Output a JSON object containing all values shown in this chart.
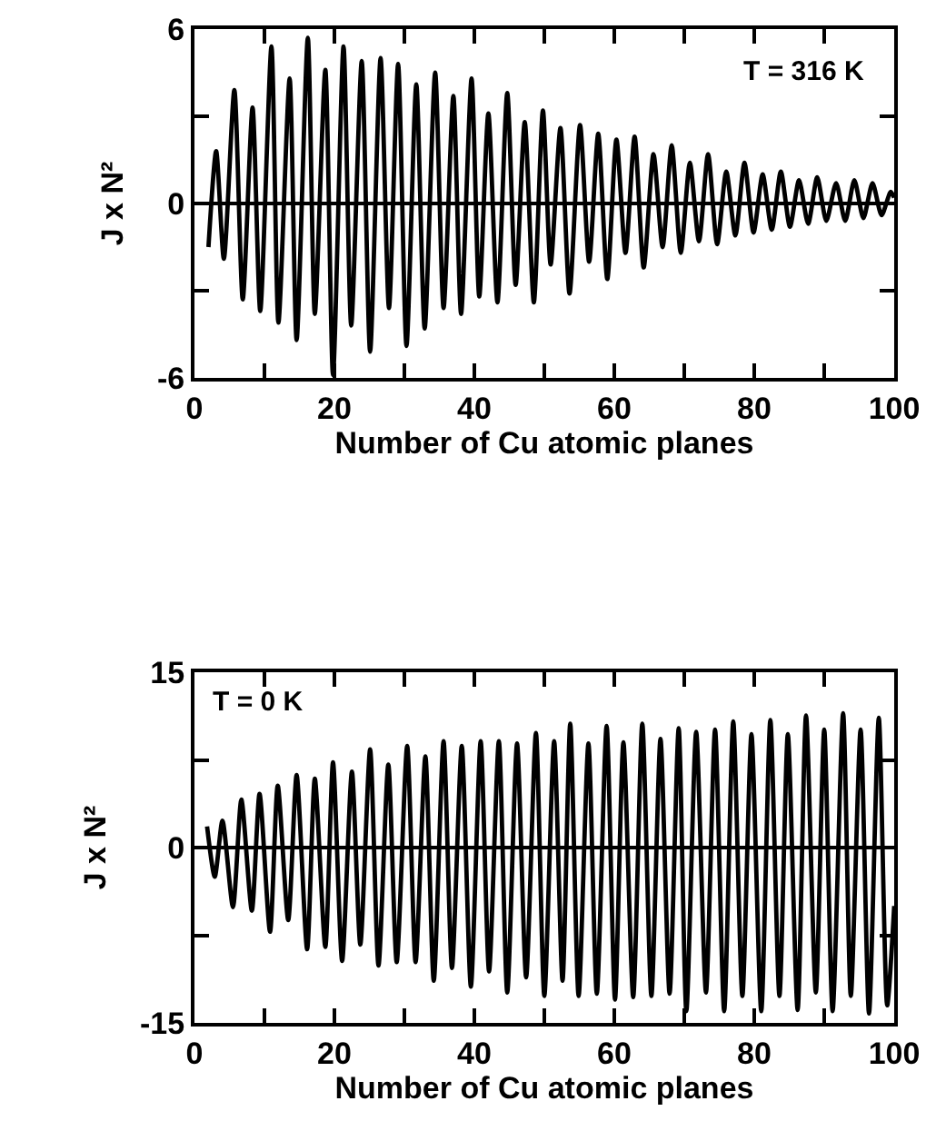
{
  "chart_data": [
    {
      "type": "line",
      "xlabel": "Number of Cu atomic planes",
      "ylabel": "J x N²",
      "annotations": [
        "T = 316 K"
      ],
      "xlim": [
        0,
        100
      ],
      "xticks": [
        0,
        {
          "value": 10,
          "label": null
        },
        20,
        {
          "value": 30,
          "label": null
        },
        40,
        {
          "value": 50,
          "label": null
        },
        60,
        {
          "value": 70,
          "label": null
        },
        80,
        {
          "value": 90,
          "label": null
        },
        100
      ],
      "ylim": [
        -6,
        6
      ],
      "yticks": [
        -6,
        {
          "value": -3,
          "label": null
        },
        0,
        {
          "value": 3,
          "label": null
        },
        6
      ],
      "grid": false,
      "marker": "none",
      "line_style": "solid",
      "ref_lines": [
        {
          "axis": "y",
          "value": 0,
          "color": "#000000"
        }
      ],
      "series": [
        {
          "color": "#000000",
          "x": [
            2,
            3.1,
            4.2,
            5.7,
            6.9,
            8.3,
            9.4,
            11,
            12,
            13.6,
            14.6,
            16.2,
            17.2,
            18.7,
            19.8,
            21.3,
            22.4,
            23.9,
            25.1,
            26.6,
            27.8,
            29.1,
            30.3,
            31.7,
            32.9,
            34.4,
            35.6,
            37,
            38.1,
            39.6,
            40.7,
            42,
            43.3,
            44.7,
            45.9,
            47.2,
            48.5,
            49.8,
            50.9,
            52.3,
            53.6,
            55.1,
            56.4,
            57.7,
            59,
            60.3,
            61.6,
            62.9,
            64.2,
            65.6,
            66.9,
            68.2,
            69.5,
            70.8,
            72.1,
            73.4,
            74.7,
            76,
            77.3,
            78.6,
            79.9,
            81.2,
            82.5,
            83.8,
            85.1,
            86.4,
            87.7,
            89,
            90.3,
            91.7,
            93,
            94.3,
            95.6,
            96.9,
            98.2,
            99.5,
            100
          ],
          "values": [
            -1.5,
            1.8,
            -1.9,
            3.9,
            -3.3,
            3.3,
            -3.7,
            5.4,
            -4.1,
            4.3,
            -4.7,
            5.7,
            -3.8,
            4.6,
            -5.9,
            5.4,
            -4.2,
            4.9,
            -5.1,
            5.0,
            -3.6,
            4.8,
            -4.9,
            4.1,
            -4.3,
            4.5,
            -3.6,
            3.7,
            -3.8,
            4.3,
            -3.2,
            3.1,
            -3.4,
            3.8,
            -2.8,
            2.8,
            -3.4,
            3.2,
            -2.1,
            2.6,
            -3.1,
            2.7,
            -2.0,
            2.4,
            -2.6,
            2.2,
            -1.7,
            2.3,
            -2.2,
            1.7,
            -1.5,
            2.0,
            -1.7,
            1.4,
            -1.3,
            1.7,
            -1.4,
            1.1,
            -1.1,
            1.4,
            -1.0,
            1.0,
            -0.9,
            1.1,
            -0.8,
            0.8,
            -0.7,
            0.9,
            -0.6,
            0.7,
            -0.6,
            0.8,
            -0.5,
            0.7,
            -0.4,
            0.4,
            0.2
          ]
        }
      ]
    },
    {
      "type": "line",
      "xlabel": "Number of Cu atomic planes",
      "ylabel": "J x N²",
      "annotations": [
        "T = 0 K"
      ],
      "xlim": [
        0,
        100
      ],
      "xticks": [
        0,
        {
          "value": 10,
          "label": null
        },
        20,
        {
          "value": 30,
          "label": null
        },
        40,
        {
          "value": 50,
          "label": null
        },
        60,
        {
          "value": 70,
          "label": null
        },
        80,
        {
          "value": 90,
          "label": null
        },
        100
      ],
      "ylim": [
        -15,
        15
      ],
      "yticks": [
        -15,
        {
          "value": -7.5,
          "label": null
        },
        0,
        {
          "value": 7.5,
          "label": null
        },
        15
      ],
      "grid": false,
      "marker": "none",
      "line_style": "solid",
      "ref_lines": [
        {
          "axis": "y",
          "value": 0,
          "color": "#000000"
        }
      ],
      "series": [
        {
          "color": "#000000",
          "x": [
            1.8,
            2.9,
            4,
            5.5,
            6.7,
            8.2,
            9.3,
            10.8,
            11.9,
            13.4,
            14.6,
            16.1,
            17.2,
            18.7,
            19.8,
            21.1,
            22.5,
            23.7,
            25.1,
            26.3,
            27.7,
            28.9,
            30.4,
            31.6,
            33,
            34.2,
            35.6,
            36.8,
            38.2,
            39.5,
            40.9,
            42.1,
            43.5,
            44.7,
            46.1,
            47.4,
            48.8,
            50,
            51.4,
            52.6,
            53.7,
            54.9,
            56.3,
            57.5,
            58.9,
            60.1,
            61.3,
            62.7,
            64,
            65.3,
            66.6,
            67.9,
            69.2,
            70.3,
            71.7,
            73.1,
            74.4,
            75.7,
            77,
            78.3,
            79.6,
            81,
            82.3,
            83.6,
            84.8,
            86.2,
            87.4,
            88.8,
            90,
            91.2,
            92.7,
            93.8,
            95.2,
            96.4,
            97.8,
            99,
            100
          ],
          "values": [
            1.8,
            -2.5,
            2.3,
            -5.1,
            4.1,
            -5.4,
            4.6,
            -7.2,
            5.3,
            -6.2,
            6.2,
            -8.7,
            5.9,
            -8.5,
            7.3,
            -9.7,
            6.5,
            -8.3,
            8.4,
            -10.1,
            7.1,
            -9.8,
            8.7,
            -9.8,
            7.8,
            -11.4,
            9.1,
            -10.3,
            8.7,
            -11.9,
            9.1,
            -10.6,
            9.1,
            -12.4,
            8.9,
            -11.1,
            9.8,
            -12.7,
            9.1,
            -11.4,
            10.6,
            -12.7,
            8.9,
            -12.5,
            10.4,
            -13,
            9.0,
            -12.8,
            10.6,
            -12.7,
            9.3,
            -12.5,
            10.2,
            -14,
            9.9,
            -12.4,
            10.1,
            -14,
            10.8,
            -12.7,
            9.7,
            -14,
            10.9,
            -12.7,
            9.7,
            -13.9,
            11.3,
            -12.4,
            10.1,
            -14,
            11.5,
            -12.7,
            10.1,
            -14.2,
            11.1,
            -13.5,
            -5
          ]
        }
      ]
    }
  ]
}
